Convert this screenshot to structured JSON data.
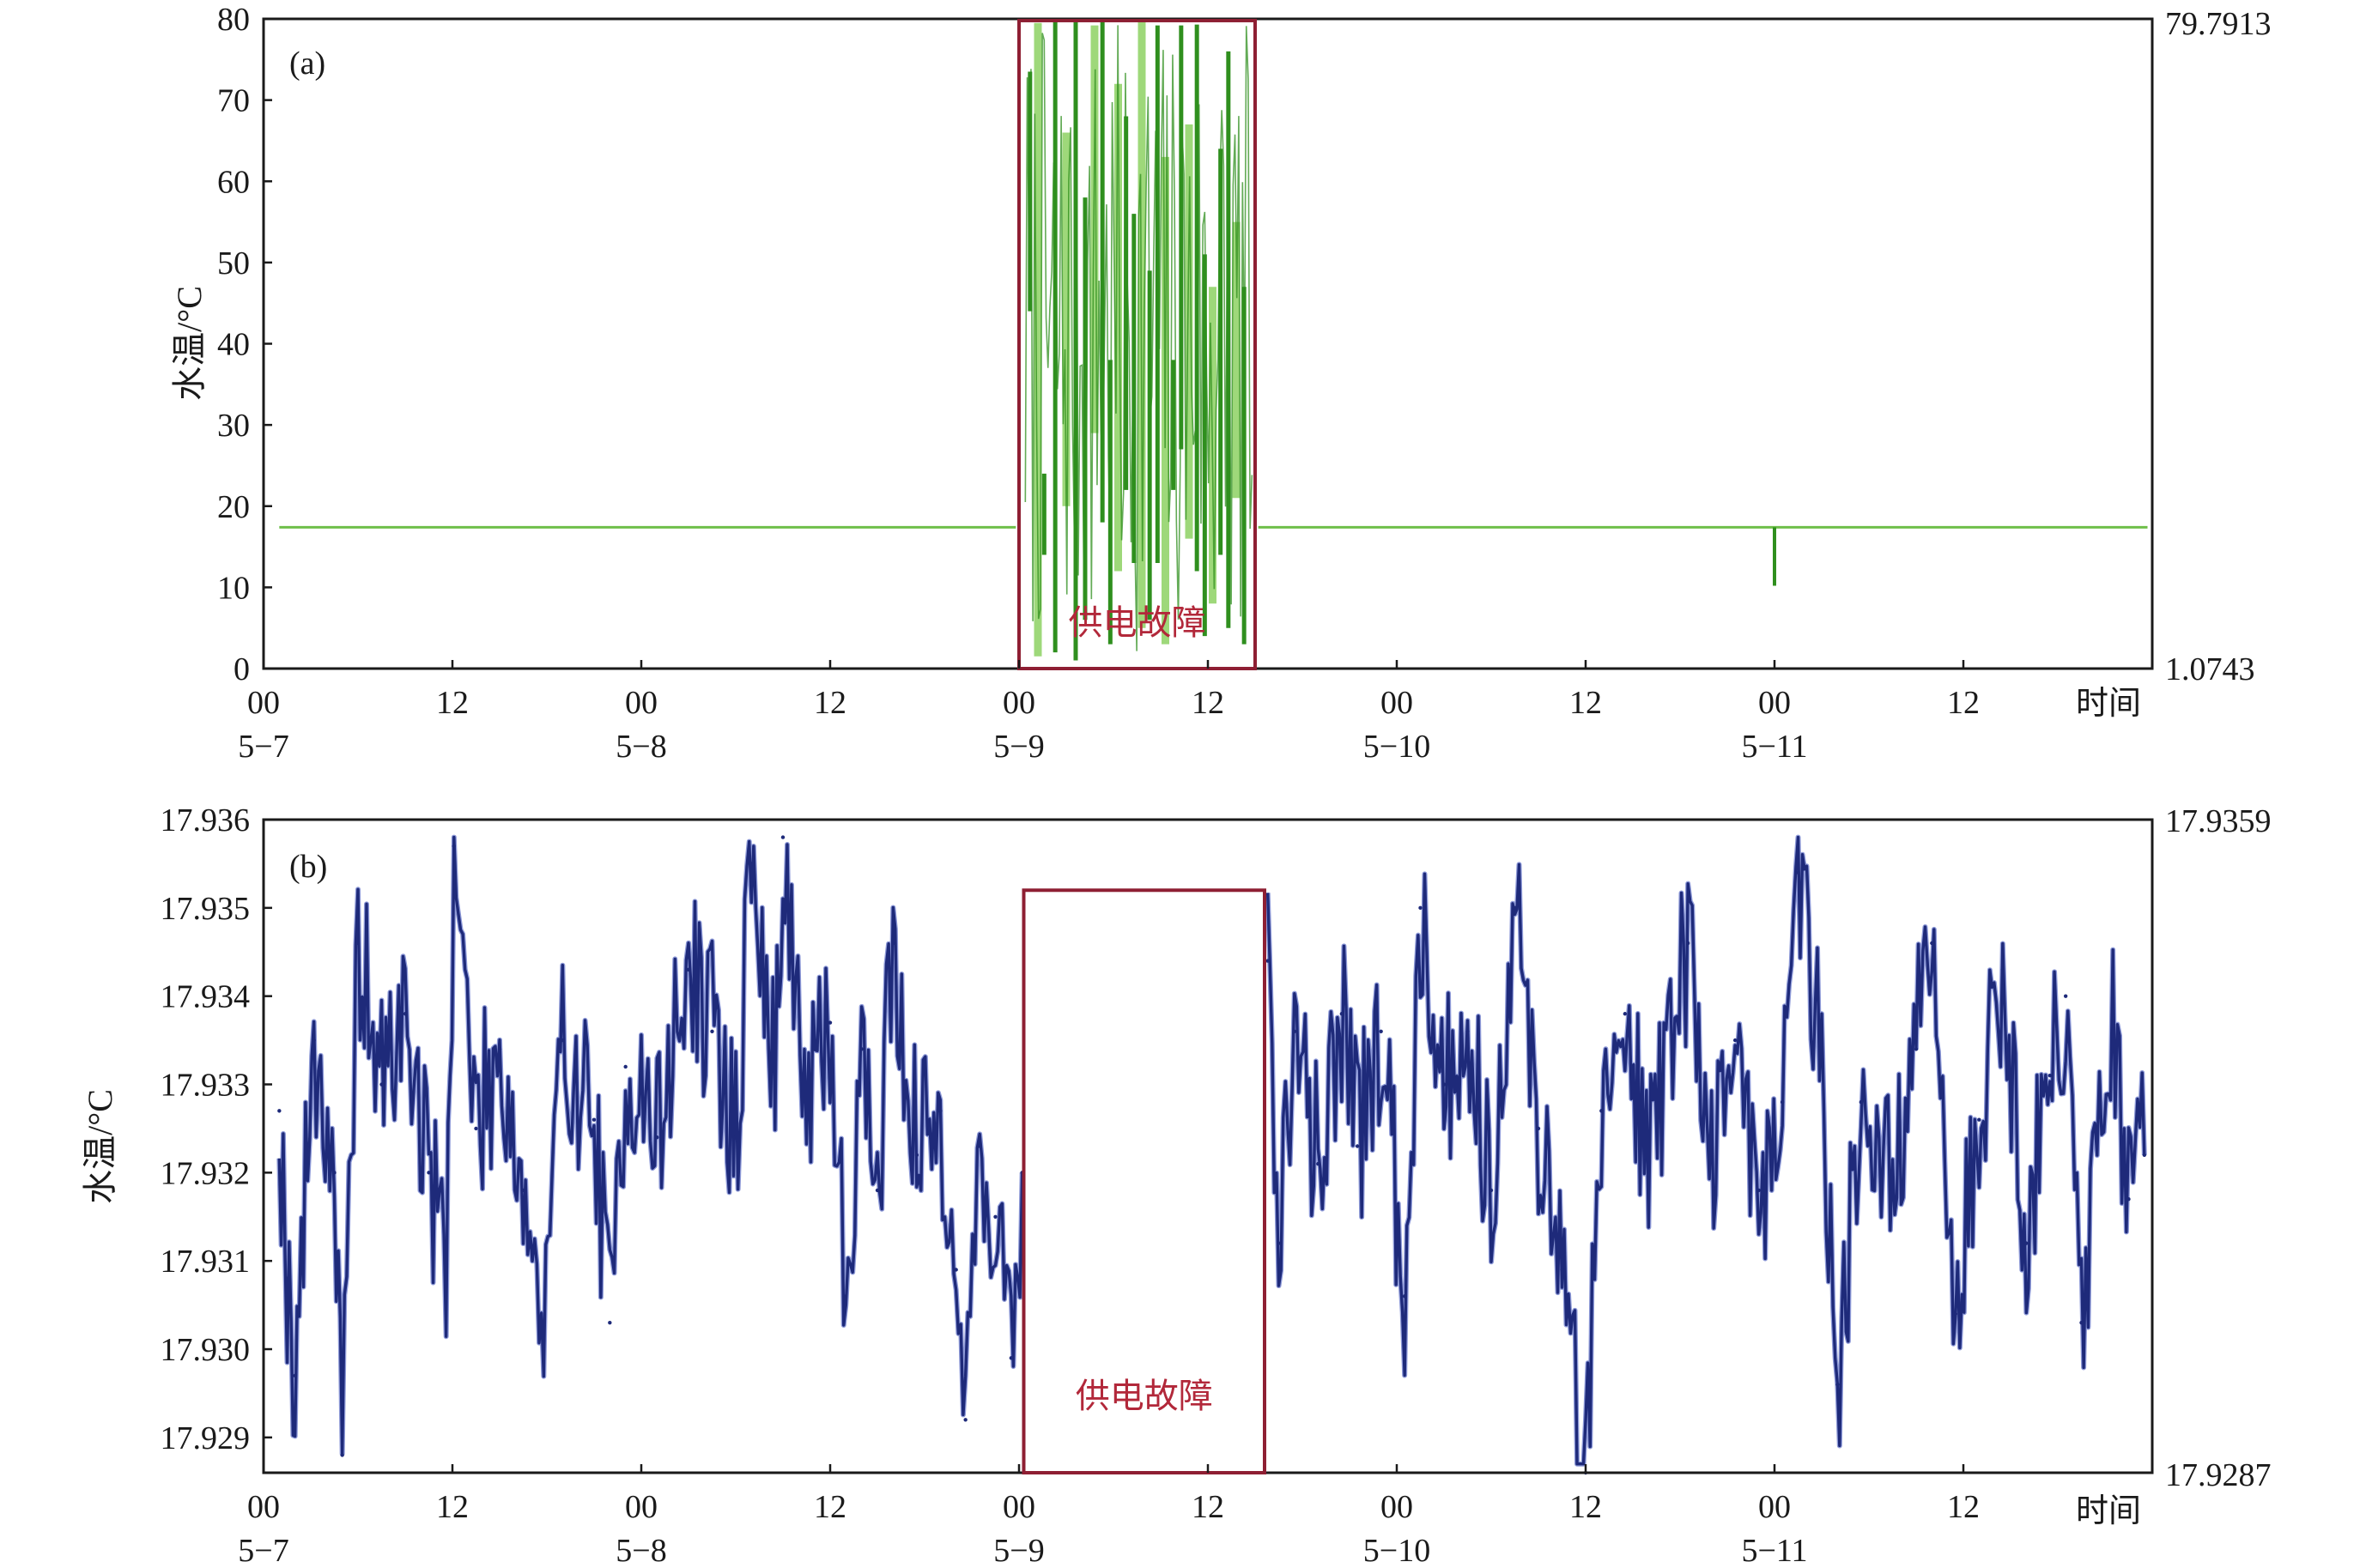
{
  "chart_data": [
    {
      "panel_label": "(a)",
      "type": "line",
      "ylabel": "水温/°C",
      "xlabel": "时间",
      "ylim": [
        0,
        80
      ],
      "yticks": [
        "0",
        "10",
        "20",
        "30",
        "40",
        "50",
        "60",
        "70",
        "80"
      ],
      "right_axis": {
        "max_label": "79.7913",
        "min_label": "1.0743",
        "max": 79.7913,
        "min": 1.0743
      },
      "xlim": [
        0,
        120
      ],
      "xticks": [
        {
          "x": 0,
          "label": "00",
          "date": "5−7"
        },
        {
          "x": 12,
          "label": "12",
          "date": ""
        },
        {
          "x": 24,
          "label": "00",
          "date": "5−8"
        },
        {
          "x": 36,
          "label": "12",
          "date": ""
        },
        {
          "x": 48,
          "label": "00",
          "date": "5−9"
        },
        {
          "x": 60,
          "label": "12",
          "date": ""
        },
        {
          "x": 72,
          "label": "00",
          "date": "5−10"
        },
        {
          "x": 84,
          "label": "12",
          "date": ""
        },
        {
          "x": 96,
          "label": "00",
          "date": "5−11"
        },
        {
          "x": 108,
          "label": "12",
          "date": ""
        }
      ],
      "baseline": 17.4,
      "series_colors": [
        "#2f8f1e",
        "#9ed87a"
      ],
      "fault_window": {
        "x0": 48,
        "x1": 63,
        "y0": 0,
        "y1": 79.7913,
        "label": "供电故障",
        "color": "#8e1f33"
      },
      "fault_spikes": [
        [
          48.7,
          73.5,
          44
        ],
        [
          49.2,
          79.5,
          1.5
        ],
        [
          49.6,
          24,
          14
        ],
        [
          50.3,
          79.8,
          2
        ],
        [
          51.0,
          66,
          20
        ],
        [
          51.6,
          79.6,
          1
        ],
        [
          52.2,
          58,
          6
        ],
        [
          52.8,
          79.2,
          29
        ],
        [
          53.3,
          79.8,
          18
        ],
        [
          53.8,
          38,
          3
        ],
        [
          54.3,
          72,
          12
        ],
        [
          54.8,
          68,
          22
        ],
        [
          55.3,
          56,
          13
        ],
        [
          55.8,
          79.8,
          5
        ],
        [
          56.3,
          49,
          6
        ],
        [
          56.8,
          79.2,
          13
        ],
        [
          57.3,
          63,
          3
        ],
        [
          57.8,
          38,
          22
        ],
        [
          58.3,
          79.2,
          27
        ],
        [
          58.8,
          67,
          16
        ],
        [
          59.3,
          79.3,
          12
        ],
        [
          59.8,
          51,
          4
        ],
        [
          60.3,
          47,
          8
        ],
        [
          60.8,
          64,
          14
        ],
        [
          61.3,
          76,
          5
        ],
        [
          61.8,
          55,
          21
        ],
        [
          62.3,
          47,
          3
        ]
      ],
      "small_spikes": [
        [
          96,
          17.4,
          10.2
        ]
      ]
    },
    {
      "panel_label": "(b)",
      "type": "line",
      "ylabel": "水温/°C",
      "xlabel": "时间",
      "ylim": [
        17.9286,
        17.936
      ],
      "yticks": [
        "17.929",
        "17.930",
        "17.931",
        "17.932",
        "17.933",
        "17.934",
        "17.935",
        "17.936"
      ],
      "right_axis": {
        "max_label": "17.9359",
        "min_label": "17.9287",
        "max": 17.9359,
        "min": 17.9287
      },
      "xlim": [
        0,
        120
      ],
      "xticks": [
        {
          "x": 0,
          "label": "00",
          "date": "5−7"
        },
        {
          "x": 12,
          "label": "12",
          "date": ""
        },
        {
          "x": 24,
          "label": "00",
          "date": "5−8"
        },
        {
          "x": 36,
          "label": "12",
          "date": ""
        },
        {
          "x": 48,
          "label": "00",
          "date": "5−9"
        },
        {
          "x": 60,
          "label": "12",
          "date": ""
        },
        {
          "x": 72,
          "label": "00",
          "date": "5−10"
        },
        {
          "x": 84,
          "label": "12",
          "date": ""
        },
        {
          "x": 96,
          "label": "00",
          "date": "5−11"
        },
        {
          "x": 108,
          "label": "12",
          "date": ""
        }
      ],
      "series_colors": [
        "#1e2a7a",
        "#8e9ad8"
      ],
      "fault_window": {
        "x0": 48.3,
        "x1": 63.6,
        "y0": 17.9286,
        "y1": 17.9352,
        "label": "供电故障",
        "color": "#8e1f33"
      },
      "key_points": [
        [
          1.0,
          17.9327
        ],
        [
          1.5,
          17.9308
        ],
        [
          2.0,
          17.9297
        ],
        [
          3.2,
          17.9335
        ],
        [
          4.5,
          17.932
        ],
        [
          5.0,
          17.9288
        ],
        [
          6.0,
          17.9346
        ],
        [
          7.5,
          17.933
        ],
        [
          9.0,
          17.9338
        ],
        [
          10.5,
          17.932
        ],
        [
          11.6,
          17.9311
        ],
        [
          12.1,
          17.9357
        ],
        [
          13.5,
          17.9325
        ],
        [
          15.0,
          17.9334
        ],
        [
          16.5,
          17.9318
        ],
        [
          17.8,
          17.9301
        ],
        [
          19.0,
          17.9335
        ],
        [
          21.0,
          17.9326
        ],
        [
          22.0,
          17.9303
        ],
        [
          23.0,
          17.9332
        ],
        [
          25.0,
          17.9324
        ],
        [
          27.0,
          17.9343
        ],
        [
          28.5,
          17.9336
        ],
        [
          30.0,
          17.9324
        ],
        [
          31.0,
          17.9355
        ],
        [
          32.5,
          17.933
        ],
        [
          33.0,
          17.9358
        ],
        [
          34.5,
          17.9326
        ],
        [
          36.0,
          17.9337
        ],
        [
          37.0,
          17.9306
        ],
        [
          38.0,
          17.9334
        ],
        [
          39.0,
          17.9318
        ],
        [
          40.0,
          17.9346
        ],
        [
          41.5,
          17.9322
        ],
        [
          43.0,
          17.9327
        ],
        [
          44.0,
          17.9309
        ],
        [
          44.6,
          17.9292
        ],
        [
          45.5,
          17.9323
        ],
        [
          46.5,
          17.9315
        ],
        [
          47.5,
          17.9299
        ],
        [
          48.2,
          17.932
        ],
        [
          63.8,
          17.9344
        ],
        [
          64.5,
          17.9312
        ],
        [
          65.5,
          17.9336
        ],
        [
          67.0,
          17.9321
        ],
        [
          68.5,
          17.9338
        ],
        [
          69.5,
          17.9323
        ],
        [
          71.0,
          17.9336
        ],
        [
          72.5,
          17.9306
        ],
        [
          73.5,
          17.935
        ],
        [
          75.0,
          17.933
        ],
        [
          76.5,
          17.9336
        ],
        [
          78.0,
          17.9318
        ],
        [
          79.5,
          17.935
        ],
        [
          81.0,
          17.9325
        ],
        [
          82.5,
          17.9309
        ],
        [
          84.0,
          17.9286
        ],
        [
          85.0,
          17.9327
        ],
        [
          86.5,
          17.9338
        ],
        [
          88.0,
          17.9322
        ],
        [
          90.5,
          17.9346
        ],
        [
          92.0,
          17.9322
        ],
        [
          93.5,
          17.9335
        ],
        [
          95.0,
          17.9318
        ],
        [
          96.5,
          17.9328
        ],
        [
          97.5,
          17.9354
        ],
        [
          99.0,
          17.9334
        ],
        [
          100.0,
          17.9296
        ],
        [
          101.5,
          17.9328
        ],
        [
          103.5,
          17.9318
        ],
        [
          105.0,
          17.9334
        ],
        [
          106.0,
          17.9346
        ],
        [
          107.5,
          17.9304
        ],
        [
          109.0,
          17.9326
        ],
        [
          110.5,
          17.9343
        ],
        [
          112.0,
          17.9312
        ],
        [
          113.5,
          17.9331
        ],
        [
          114.5,
          17.934
        ],
        [
          115.5,
          17.9303
        ],
        [
          117.5,
          17.9336
        ],
        [
          118.5,
          17.9317
        ],
        [
          119.5,
          17.9322
        ]
      ]
    }
  ]
}
